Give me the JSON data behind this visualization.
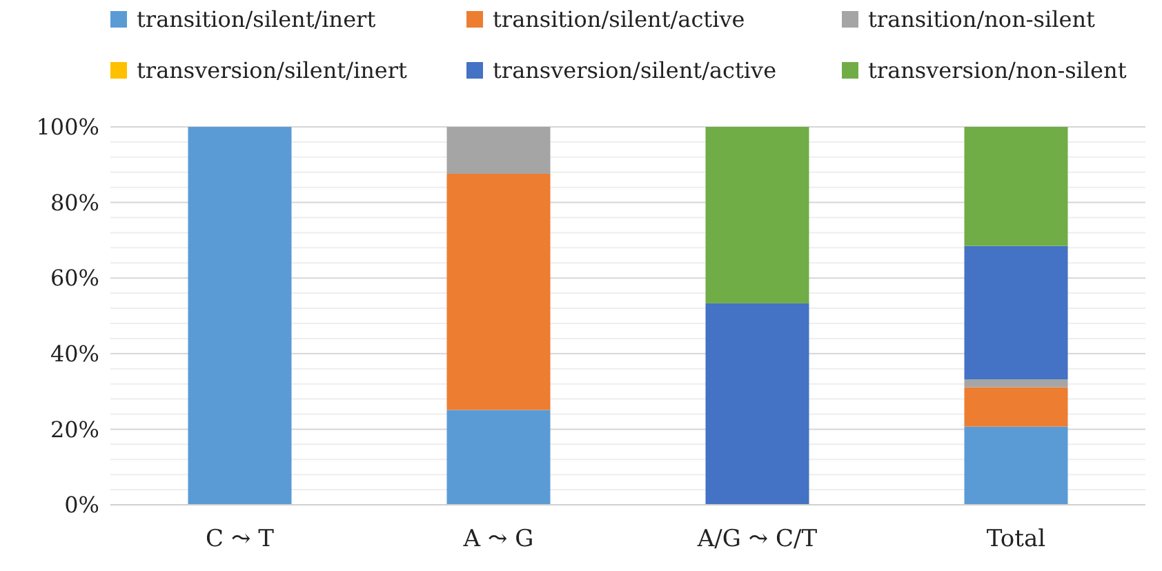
{
  "chart_data": {
    "type": "bar",
    "stacked": true,
    "categories": [
      "C ⤳ T",
      "A ⤳ G",
      "A/G ⤳ C/T",
      "Total"
    ],
    "series": [
      {
        "name": "transition/silent/inert",
        "color": "#5b9bd5",
        "values": [
          100,
          25.1,
          0,
          20.7
        ]
      },
      {
        "name": "transition/silent/active",
        "color": "#ed7d31",
        "values": [
          0,
          62.5,
          0,
          10.4
        ]
      },
      {
        "name": "transition/non-silent",
        "color": "#a5a5a5",
        "values": [
          0,
          12.4,
          0,
          2.1
        ]
      },
      {
        "name": "transversion/silent/inert",
        "color": "#ffc000",
        "values": [
          0,
          0,
          0,
          0
        ]
      },
      {
        "name": "transversion/silent/active",
        "color": "#4472c4",
        "values": [
          0,
          0,
          53.3,
          35.3
        ]
      },
      {
        "name": "transversion/non-silent",
        "color": "#70ad47",
        "values": [
          0,
          0,
          46.7,
          31.5
        ]
      }
    ],
    "ylim": [
      0,
      100
    ],
    "yticks": [
      {
        "value": 0,
        "label": "0%"
      },
      {
        "value": 4,
        "label": null
      },
      {
        "value": 8,
        "label": null
      },
      {
        "value": 12,
        "label": null
      },
      {
        "value": 16,
        "label": null
      },
      {
        "value": 20,
        "label": "20%"
      },
      {
        "value": 24,
        "label": null
      },
      {
        "value": 28,
        "label": null
      },
      {
        "value": 32,
        "label": null
      },
      {
        "value": 36,
        "label": null
      },
      {
        "value": 40,
        "label": "40%"
      },
      {
        "value": 44,
        "label": null
      },
      {
        "value": 48,
        "label": null
      },
      {
        "value": 52,
        "label": null
      },
      {
        "value": 56,
        "label": null
      },
      {
        "value": 60,
        "label": "60%"
      },
      {
        "value": 64,
        "label": null
      },
      {
        "value": 68,
        "label": null
      },
      {
        "value": 72,
        "label": null
      },
      {
        "value": 76,
        "label": null
      },
      {
        "value": 80,
        "label": "80%"
      },
      {
        "value": 84,
        "label": null
      },
      {
        "value": 88,
        "label": null
      },
      {
        "value": 92,
        "label": null
      },
      {
        "value": 96,
        "label": null
      },
      {
        "value": 100,
        "label": "100%"
      }
    ],
    "grid": "y",
    "legend": "top"
  }
}
